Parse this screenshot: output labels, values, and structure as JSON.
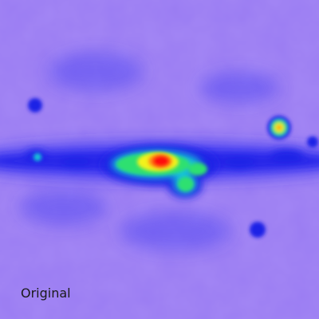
{
  "image": {
    "caption": "Original",
    "colors": {
      "background": "#9a7cf2",
      "band_blue": "#2d2ff2",
      "deep_blue": "#1e22e6",
      "cyan": "#19c4d8",
      "green": "#2ee070",
      "yellow": "#f2f21c",
      "orange": "#ff8a14",
      "red": "#ff1010"
    }
  }
}
